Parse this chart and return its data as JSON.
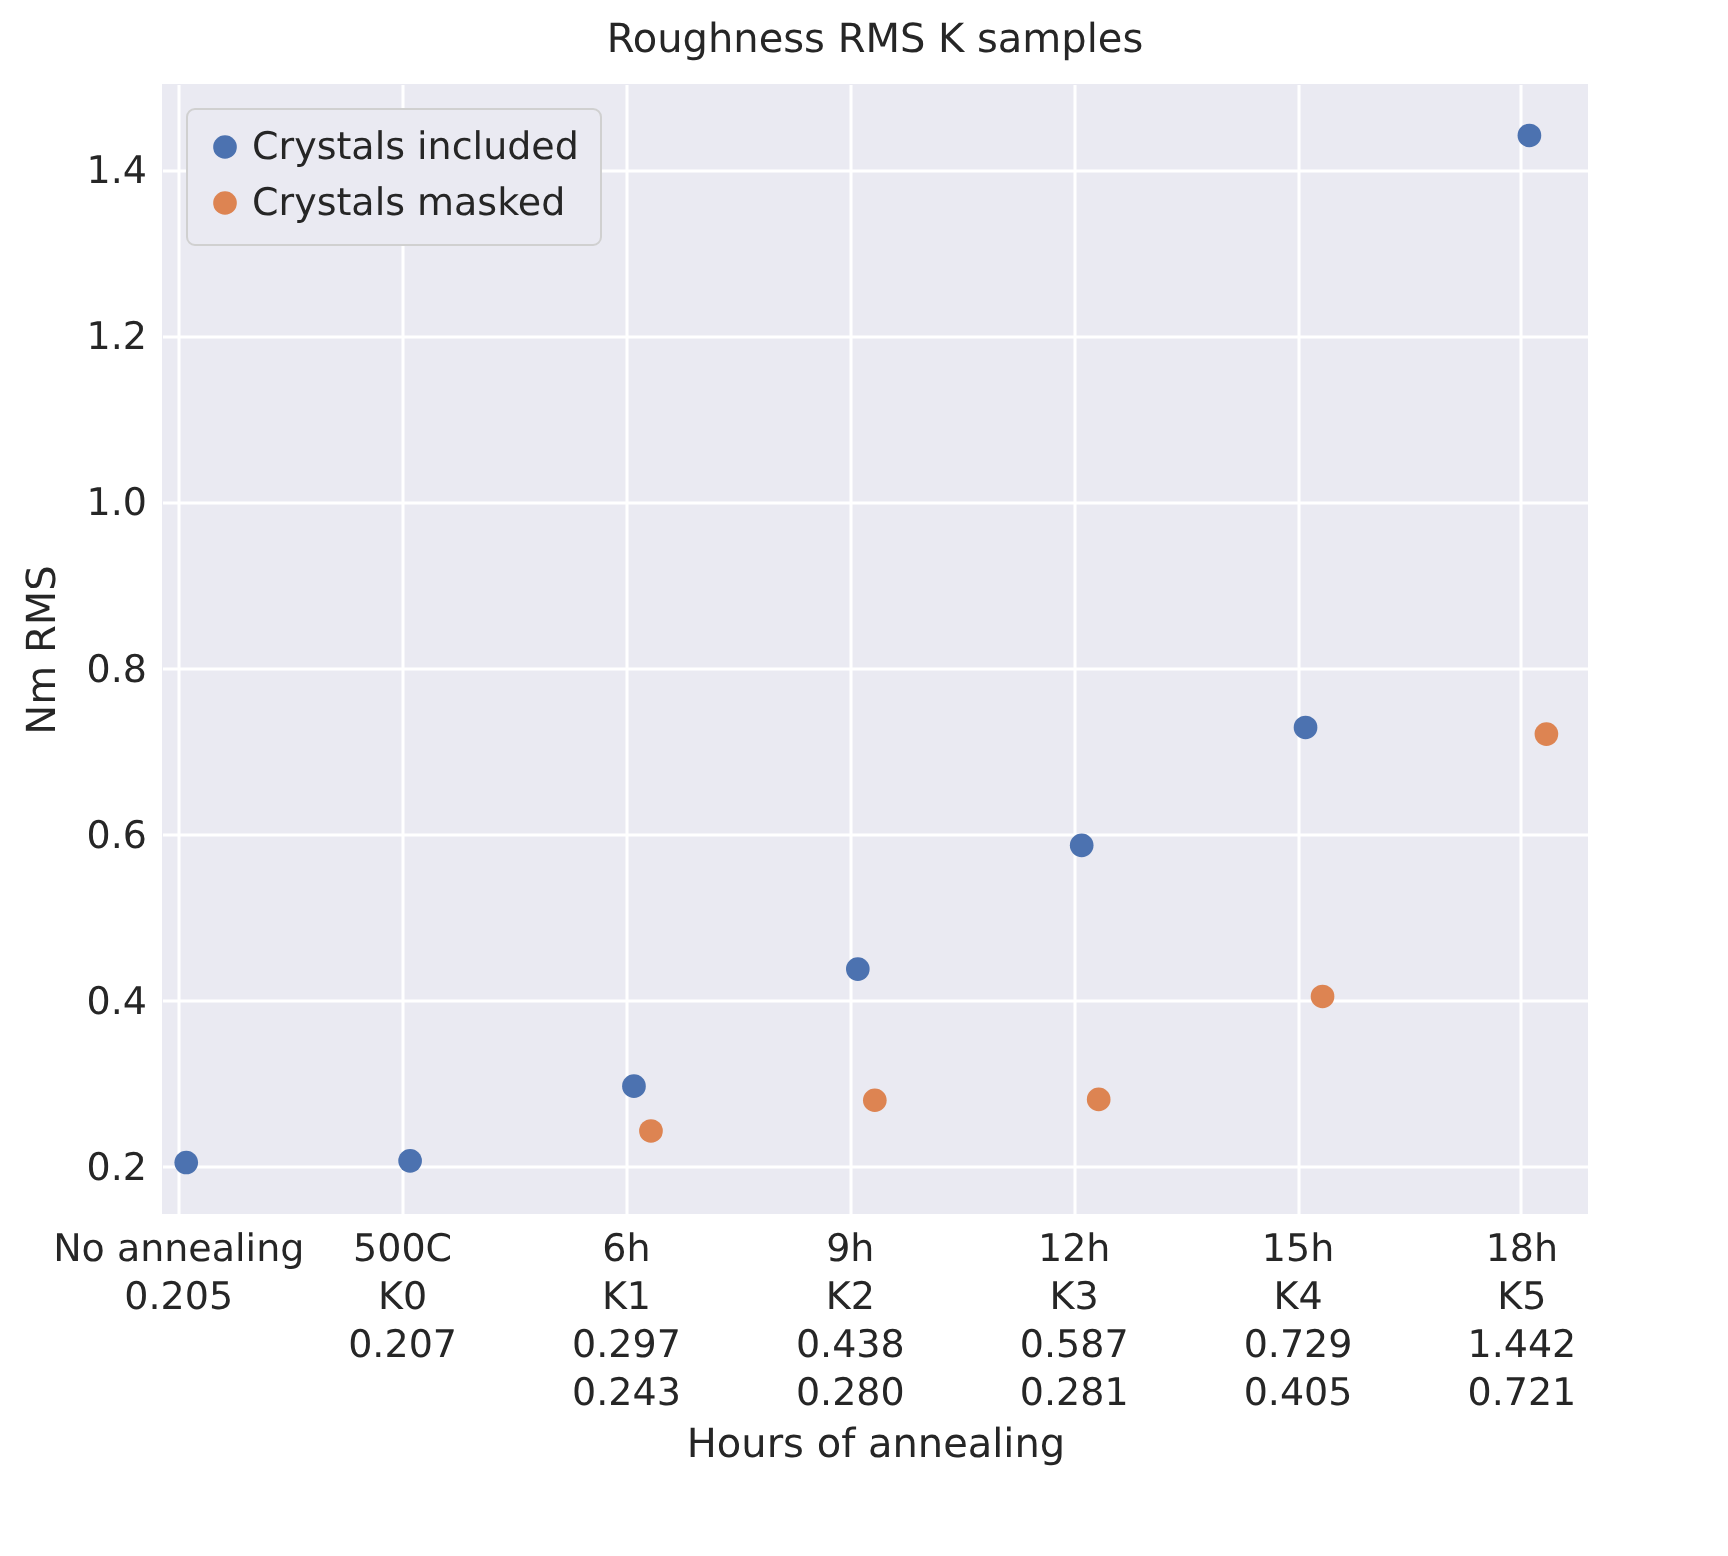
{
  "chart_data": {
    "type": "scatter",
    "title": "Roughness RMS K samples",
    "xlabel": "Hours of annealing",
    "ylabel": "Nm RMS",
    "categories": [
      "No annealing\n0.205",
      "500C\nK0\n0.207",
      "6h\nK1\n0.297\n0.243",
      "9h\nK2\n0.438\n0.280",
      "12h\nK3\n0.587\n0.281",
      "15h\nK4\n0.729\n0.405",
      "18h\nK5\n1.442\n0.721"
    ],
    "series": [
      {
        "name": "Crystals included",
        "color": "#4c72b0",
        "values": [
          0.205,
          0.207,
          0.297,
          0.438,
          0.587,
          0.729,
          1.442
        ]
      },
      {
        "name": "Crystals masked",
        "color": "#dd8452",
        "values": [
          null,
          null,
          0.243,
          0.28,
          0.281,
          0.405,
          0.721
        ]
      }
    ],
    "ylim": [
      0.143,
      1.504
    ],
    "yticks": [
      0.2,
      0.4,
      0.6,
      0.8,
      {
        "value": 1,
        "label": "1.0"
      },
      1.2,
      1.4
    ],
    "grid": true,
    "legend": "top left",
    "marker": "circle"
  }
}
